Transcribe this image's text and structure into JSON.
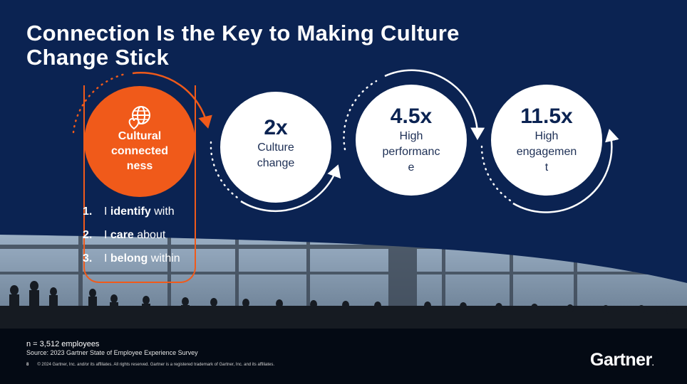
{
  "title_line1": "Connection Is the Key to Making Culture",
  "title_line2": "Change Stick",
  "colors": {
    "navy": "#0b2352",
    "orange": "#f05a1a",
    "white": "#ffffff"
  },
  "driver": {
    "icon": "globe-heart-icon",
    "label_lines": [
      "Cultural",
      "connected",
      "ness"
    ],
    "items": [
      {
        "number": "1.",
        "pre": "I ",
        "bold": "identify",
        "post": " with"
      },
      {
        "number": "2.",
        "pre": "I ",
        "bold": "care",
        "post": " about"
      },
      {
        "number": "3.",
        "pre": "I ",
        "bold": "belong",
        "post": " within"
      }
    ]
  },
  "outcomes": [
    {
      "multiplier": "2x",
      "label_lines": [
        "Culture",
        "change"
      ]
    },
    {
      "multiplier": "4.5x",
      "label_lines": [
        "High",
        "performanc",
        "e"
      ]
    },
    {
      "multiplier": "11.5x",
      "label_lines": [
        "High",
        "engagemen",
        "t"
      ]
    }
  ],
  "footer": {
    "sample": "n = 3,512 employees",
    "source": "Source: 2023 Gartner State of Employee Experience Survey",
    "page_number": "8",
    "copyright": "© 2024 Gartner, Inc. and/or its affiliates. All rights reserved. Gartner is a registered trademark of Gartner, Inc. and its affiliates.",
    "logo": "Gartner",
    "logo_mark": "."
  }
}
